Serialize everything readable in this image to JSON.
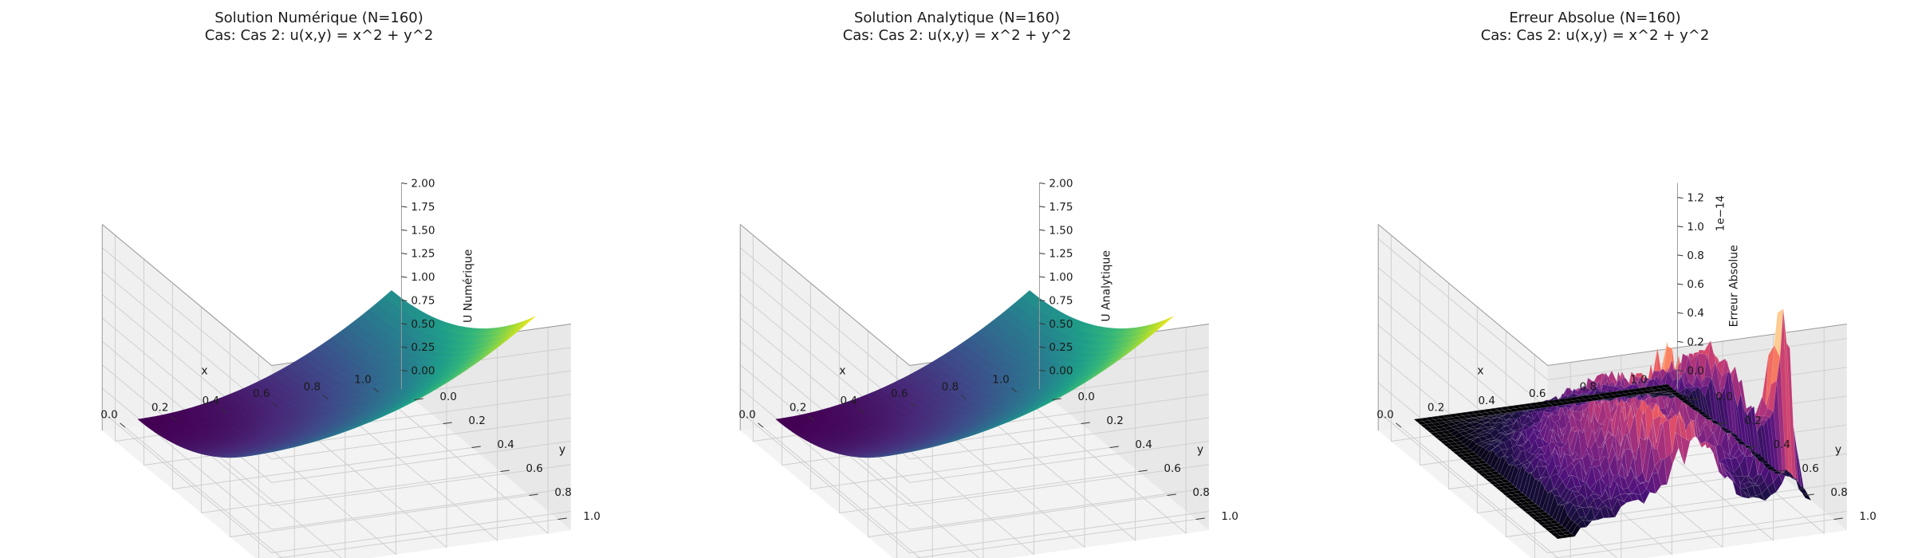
{
  "chart_data": [
    {
      "type": "surface",
      "title": "Solution Numérique (N=160)",
      "subtitle": "Cas: Cas 2: u(x,y) = x^2 + y^2",
      "xlabel": "x",
      "ylabel": "y",
      "zlabel": "U Numérique",
      "xlim": [
        0,
        1
      ],
      "ylim": [
        0,
        1
      ],
      "zlim": [
        0,
        2
      ],
      "xticks": [
        "0.0",
        "0.2",
        "0.4",
        "0.6",
        "0.8",
        "1.0"
      ],
      "yticks": [
        "0.0",
        "0.2",
        "0.4",
        "0.6",
        "0.8",
        "1.0"
      ],
      "zticks": [
        "0.00",
        "0.25",
        "0.50",
        "0.75",
        "1.00",
        "1.25",
        "1.50",
        "1.75",
        "2.00"
      ],
      "zticks_values": [
        0,
        0.25,
        0.5,
        0.75,
        1.0,
        1.25,
        1.5,
        1.75,
        2.0
      ],
      "function": "x^2 + y^2",
      "colormap": "viridis",
      "grid": true
    },
    {
      "type": "surface",
      "title": "Solution Analytique (N=160)",
      "subtitle": "Cas: Cas 2: u(x,y) = x^2 + y^2",
      "xlabel": "x",
      "ylabel": "y",
      "zlabel": "U Analytique",
      "xlim": [
        0,
        1
      ],
      "ylim": [
        0,
        1
      ],
      "zlim": [
        0,
        2
      ],
      "xticks": [
        "0.0",
        "0.2",
        "0.4",
        "0.6",
        "0.8",
        "1.0"
      ],
      "yticks": [
        "0.0",
        "0.2",
        "0.4",
        "0.6",
        "0.8",
        "1.0"
      ],
      "zticks": [
        "0.00",
        "0.25",
        "0.50",
        "0.75",
        "1.00",
        "1.25",
        "1.50",
        "1.75",
        "2.00"
      ],
      "zticks_values": [
        0,
        0.25,
        0.5,
        0.75,
        1.0,
        1.25,
        1.5,
        1.75,
        2.0
      ],
      "function": "x^2 + y^2",
      "colormap": "viridis",
      "grid": true
    },
    {
      "type": "surface",
      "title": "Erreur Absolue (N=160)",
      "subtitle": "Cas: Cas 2: u(x,y) = x^2 + y^2",
      "xlabel": "x",
      "ylabel": "y",
      "zlabel": "Erreur Absolue",
      "zscale_label": "1e−14",
      "xlim": [
        0,
        1
      ],
      "ylim": [
        0,
        1
      ],
      "zlim": [
        0,
        1.3
      ],
      "xticks": [
        "0.0",
        "0.2",
        "0.4",
        "0.6",
        "0.8",
        "1.0"
      ],
      "yticks": [
        "0.0",
        "0.2",
        "0.4",
        "0.6",
        "0.8",
        "1.0"
      ],
      "zticks": [
        "0.0",
        "0.2",
        "0.4",
        "0.6",
        "0.8",
        "1.0",
        "1.2"
      ],
      "zticks_values": [
        0,
        0.2,
        0.4,
        0.6,
        0.8,
        1.0,
        1.2
      ],
      "function": "noisy rounding error, peak ≈ 1.25e-14 near x≈1, y≈0.9",
      "colormap": "magma",
      "grid": true
    }
  ]
}
